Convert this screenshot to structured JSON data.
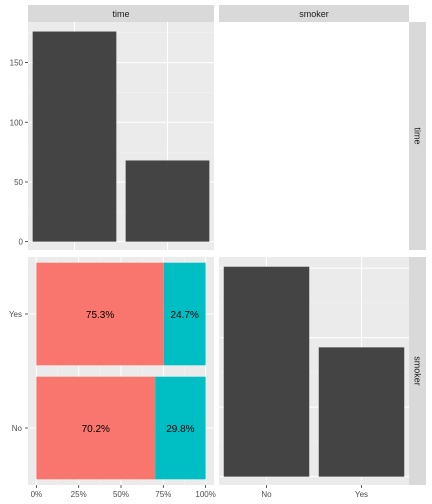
{
  "chart_data": [
    {
      "type": "bar",
      "panel": "time x time",
      "strip_top": "time",
      "categories": [
        "",
        ""
      ],
      "values": [
        176,
        68
      ],
      "ylim": [
        -7,
        184
      ],
      "yticks": [
        0,
        50,
        100,
        150
      ],
      "ytick_labels": [
        "0",
        "50",
        "100",
        "150"
      ],
      "bar_color": "#444444",
      "grid": true
    },
    {
      "type": "blank",
      "panel": "smoker x time",
      "strip_top": "smoker",
      "strip_right": "time"
    },
    {
      "type": "bar",
      "orientation": "horizontal",
      "stacked": true,
      "percent": true,
      "panel": "time x smoker",
      "categories": [
        "Yes",
        "No"
      ],
      "series": [
        {
          "values": [
            0.753,
            0.702
          ],
          "labels": [
            "75.3%",
            "70.2%"
          ],
          "color": "#F8766D"
        },
        {
          "values": [
            0.247,
            0.298
          ],
          "labels": [
            "24.7%",
            "29.8%"
          ],
          "color": "#00BFC4"
        }
      ],
      "xticks": [
        0,
        0.25,
        0.5,
        0.75,
        1
      ],
      "xtick_labels": [
        "0%",
        "25%",
        "50%",
        "75%",
        "100%"
      ],
      "grid": true
    },
    {
      "type": "bar",
      "panel": "smoker x smoker",
      "strip_right": "smoker",
      "categories": [
        "No",
        "Yes"
      ],
      "values": [
        151,
        93
      ],
      "ylim": [
        -6,
        158
      ],
      "bar_color": "#444444",
      "grid": true
    }
  ]
}
